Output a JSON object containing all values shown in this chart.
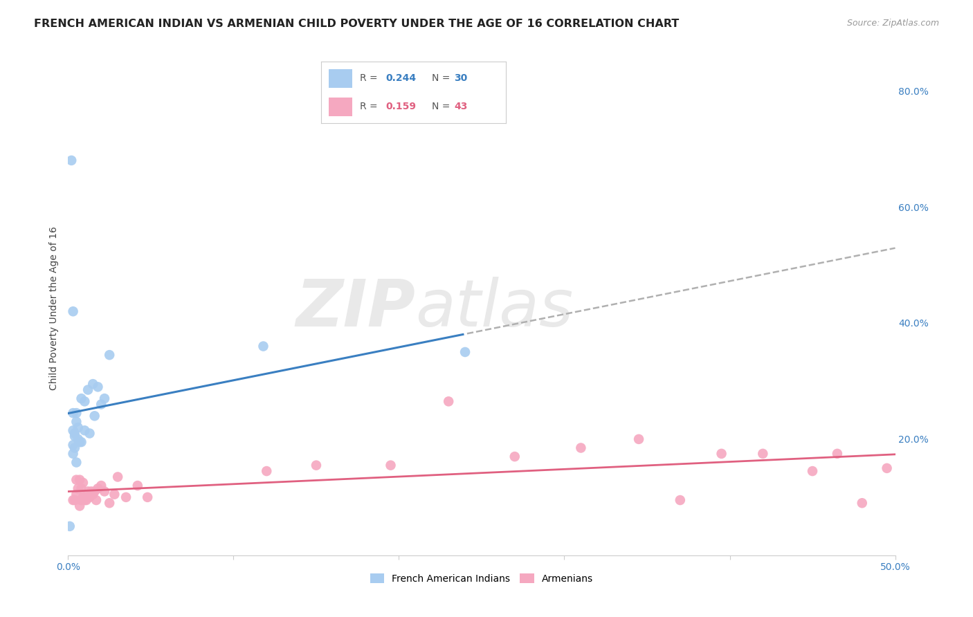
{
  "title": "FRENCH AMERICAN INDIAN VS ARMENIAN CHILD POVERTY UNDER THE AGE OF 16 CORRELATION CHART",
  "source": "Source: ZipAtlas.com",
  "ylabel": "Child Poverty Under the Age of 16",
  "xlim": [
    0.0,
    0.5
  ],
  "ylim": [
    0.0,
    0.85
  ],
  "xticks": [
    0.0,
    0.1,
    0.2,
    0.3,
    0.4,
    0.5
  ],
  "xticklabels": [
    "0.0%",
    "",
    "",
    "",
    "",
    "50.0%"
  ],
  "yticks_right": [
    0.0,
    0.2,
    0.4,
    0.6,
    0.8
  ],
  "yticklabels_right": [
    "",
    "20.0%",
    "40.0%",
    "60.0%",
    "80.0%"
  ],
  "legend_R_blue": "0.244",
  "legend_N_blue": "30",
  "legend_R_pink": "0.159",
  "legend_N_pink": "43",
  "blue_color": "#A8CCF0",
  "pink_color": "#F5A8C0",
  "trend_blue_color": "#3A7FC1",
  "trend_pink_color": "#E06080",
  "trend_dash_color": "#B0B0B0",
  "watermark_zip": "ZIP",
  "watermark_atlas": "atlas",
  "french_american_indian_x": [
    0.001,
    0.002,
    0.003,
    0.003,
    0.003,
    0.003,
    0.004,
    0.004,
    0.004,
    0.005,
    0.005,
    0.005,
    0.006,
    0.006,
    0.007,
    0.008,
    0.008,
    0.01,
    0.01,
    0.012,
    0.013,
    0.015,
    0.016,
    0.018,
    0.02,
    0.022,
    0.025,
    0.003,
    0.118,
    0.24
  ],
  "french_american_indian_y": [
    0.05,
    0.68,
    0.175,
    0.19,
    0.215,
    0.245,
    0.185,
    0.205,
    0.21,
    0.16,
    0.23,
    0.245,
    0.2,
    0.22,
    0.195,
    0.195,
    0.27,
    0.215,
    0.265,
    0.285,
    0.21,
    0.295,
    0.24,
    0.29,
    0.26,
    0.27,
    0.345,
    0.42,
    0.36,
    0.35
  ],
  "armenian_x": [
    0.003,
    0.004,
    0.005,
    0.005,
    0.006,
    0.007,
    0.007,
    0.008,
    0.008,
    0.009,
    0.009,
    0.01,
    0.01,
    0.011,
    0.012,
    0.013,
    0.014,
    0.015,
    0.016,
    0.017,
    0.018,
    0.02,
    0.022,
    0.025,
    0.028,
    0.03,
    0.035,
    0.042,
    0.048,
    0.12,
    0.15,
    0.195,
    0.23,
    0.27,
    0.31,
    0.345,
    0.37,
    0.395,
    0.42,
    0.45,
    0.465,
    0.48,
    0.495
  ],
  "armenian_y": [
    0.095,
    0.095,
    0.13,
    0.105,
    0.115,
    0.13,
    0.085,
    0.095,
    0.115,
    0.1,
    0.125,
    0.1,
    0.095,
    0.095,
    0.11,
    0.1,
    0.11,
    0.105,
    0.11,
    0.095,
    0.115,
    0.12,
    0.11,
    0.09,
    0.105,
    0.135,
    0.1,
    0.12,
    0.1,
    0.145,
    0.155,
    0.155,
    0.265,
    0.17,
    0.185,
    0.2,
    0.095,
    0.175,
    0.175,
    0.145,
    0.175,
    0.09,
    0.15
  ],
  "grid_color": "#E5E5E5",
  "background_color": "#FFFFFF",
  "title_fontsize": 11.5,
  "axis_label_fontsize": 10,
  "tick_fontsize": 10
}
